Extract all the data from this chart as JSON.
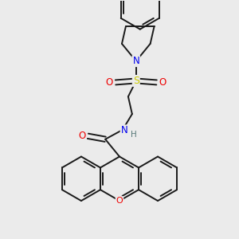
{
  "background_color": "#ebebeb",
  "bond_color": "#1a1a1a",
  "atom_colors": {
    "N": "#0000ee",
    "O": "#ee0000",
    "S": "#cccc00",
    "H": "#557777",
    "C": "#1a1a1a"
  },
  "figsize": [
    3.0,
    3.0
  ],
  "dpi": 100
}
